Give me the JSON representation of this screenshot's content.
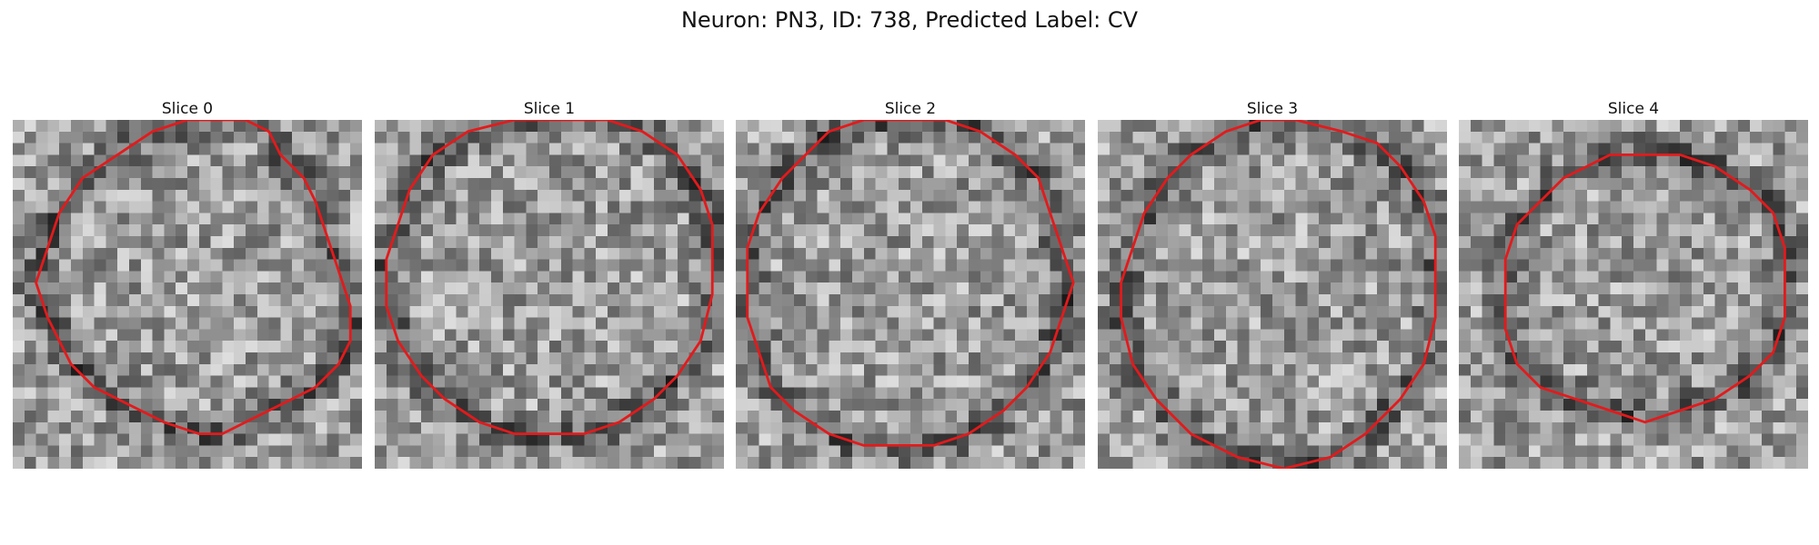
{
  "figure": {
    "title": "Neuron: PN3, ID: 738, Predicted Label: CV"
  },
  "panels": [
    {
      "title": "Slice 0",
      "contour": [
        [
          20,
          0
        ],
        [
          22,
          1
        ],
        [
          23,
          3
        ],
        [
          25,
          5
        ],
        [
          26,
          7
        ],
        [
          27,
          10
        ],
        [
          28,
          13
        ],
        [
          29,
          16
        ],
        [
          29,
          19
        ],
        [
          28,
          21
        ],
        [
          26,
          23
        ],
        [
          24,
          24
        ],
        [
          22,
          25
        ],
        [
          20,
          26
        ],
        [
          18,
          27
        ],
        [
          16,
          27
        ],
        [
          13,
          26
        ],
        [
          11,
          25
        ],
        [
          9,
          24
        ],
        [
          7,
          23
        ],
        [
          5,
          21
        ],
        [
          4,
          19
        ],
        [
          3,
          17
        ],
        [
          2,
          14
        ],
        [
          3,
          11
        ],
        [
          4,
          8
        ],
        [
          6,
          5
        ],
        [
          9,
          3
        ],
        [
          12,
          1
        ],
        [
          15,
          0
        ],
        [
          18,
          0
        ]
      ]
    },
    {
      "title": "Slice 1",
      "contour": [
        [
          8,
          1
        ],
        [
          12,
          0
        ],
        [
          16,
          0
        ],
        [
          20,
          0
        ],
        [
          23,
          1
        ],
        [
          26,
          3
        ],
        [
          28,
          6
        ],
        [
          29,
          9
        ],
        [
          29,
          12
        ],
        [
          29,
          15
        ],
        [
          28,
          19
        ],
        [
          26,
          22
        ],
        [
          24,
          24
        ],
        [
          21,
          26
        ],
        [
          18,
          27
        ],
        [
          15,
          27
        ],
        [
          12,
          27
        ],
        [
          9,
          26
        ],
        [
          6,
          24
        ],
        [
          4,
          22
        ],
        [
          2,
          19
        ],
        [
          1,
          16
        ],
        [
          1,
          12
        ],
        [
          2,
          9
        ],
        [
          3,
          6
        ],
        [
          5,
          3
        ]
      ]
    },
    {
      "title": "Slice 2",
      "contour": [
        [
          11,
          0
        ],
        [
          14,
          0
        ],
        [
          18,
          0
        ],
        [
          21,
          1
        ],
        [
          24,
          3
        ],
        [
          26,
          5
        ],
        [
          27,
          8
        ],
        [
          28,
          11
        ],
        [
          29,
          14
        ],
        [
          28,
          17
        ],
        [
          27,
          20
        ],
        [
          25,
          23
        ],
        [
          23,
          25
        ],
        [
          20,
          27
        ],
        [
          17,
          28
        ],
        [
          14,
          28
        ],
        [
          11,
          28
        ],
        [
          8,
          27
        ],
        [
          5,
          25
        ],
        [
          3,
          23
        ],
        [
          2,
          20
        ],
        [
          1,
          17
        ],
        [
          1,
          14
        ],
        [
          1,
          11
        ],
        [
          2,
          8
        ],
        [
          4,
          5
        ],
        [
          6,
          3
        ],
        [
          8,
          1
        ]
      ]
    },
    {
      "title": "Slice 3",
      "contour": [
        [
          17,
          0
        ],
        [
          21,
          1
        ],
        [
          24,
          2
        ],
        [
          26,
          4
        ],
        [
          28,
          7
        ],
        [
          29,
          10
        ],
        [
          29,
          14
        ],
        [
          29,
          17
        ],
        [
          28,
          21
        ],
        [
          26,
          24
        ],
        [
          23,
          27
        ],
        [
          20,
          29
        ],
        [
          16,
          30
        ],
        [
          12,
          29
        ],
        [
          8,
          27
        ],
        [
          5,
          24
        ],
        [
          3,
          21
        ],
        [
          2,
          17
        ],
        [
          2,
          14
        ],
        [
          3,
          11
        ],
        [
          4,
          8
        ],
        [
          6,
          5
        ],
        [
          8,
          3
        ],
        [
          11,
          1
        ],
        [
          14,
          0
        ]
      ]
    },
    {
      "title": "Slice 4",
      "contour": [
        [
          13,
          3
        ],
        [
          16,
          3
        ],
        [
          19,
          3
        ],
        [
          22,
          4
        ],
        [
          25,
          6
        ],
        [
          27,
          8
        ],
        [
          28,
          11
        ],
        [
          28,
          14
        ],
        [
          28,
          17
        ],
        [
          27,
          20
        ],
        [
          25,
          22
        ],
        [
          22,
          24
        ],
        [
          19,
          25
        ],
        [
          16,
          26
        ],
        [
          13,
          25
        ],
        [
          10,
          24
        ],
        [
          7,
          23
        ],
        [
          5,
          21
        ],
        [
          4,
          18
        ],
        [
          4,
          15
        ],
        [
          4,
          12
        ],
        [
          5,
          9
        ],
        [
          7,
          7
        ],
        [
          9,
          5
        ],
        [
          11,
          4
        ]
      ]
    }
  ],
  "colors": {
    "contour": "#e31a1c",
    "pixel_dark": "#1e1e1e",
    "pixel_light": "#f2f2f2"
  }
}
